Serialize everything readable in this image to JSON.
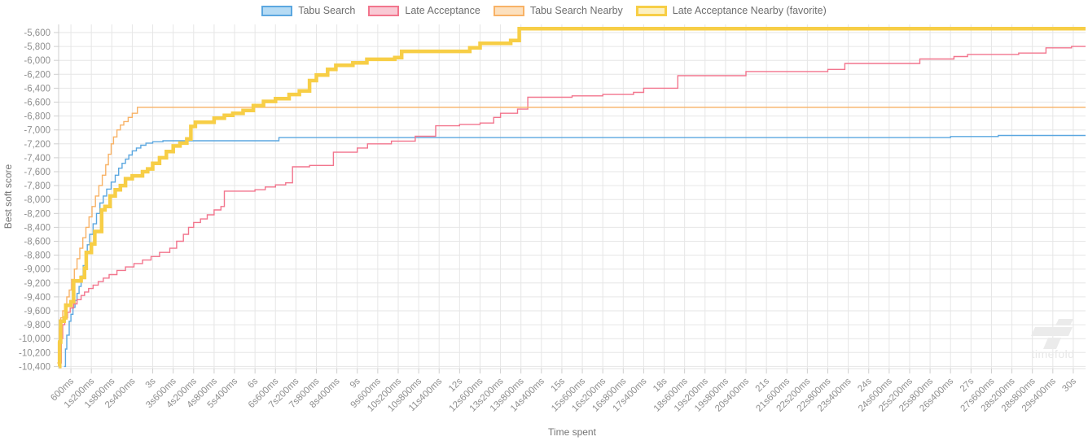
{
  "chart_data": {
    "type": "line",
    "subtype": "step-after",
    "title": "",
    "xlabel": "Time spent",
    "ylabel": "Best soft score",
    "grid": true,
    "legend_position": "top",
    "ylim": [
      -10400,
      -5600
    ],
    "x_range_seconds": [
      0.24,
      30.36
    ],
    "y_ticks": [
      {
        "v": -5600,
        "label": "-5,600"
      },
      {
        "v": -5800,
        "label": "-5,800"
      },
      {
        "v": -6000,
        "label": "-6,000"
      },
      {
        "v": -6200,
        "label": "-6,200"
      },
      {
        "v": -6400,
        "label": "-6,400"
      },
      {
        "v": -6600,
        "label": "-6,600"
      },
      {
        "v": -6800,
        "label": "-6,800"
      },
      {
        "v": -7000,
        "label": "-7,000"
      },
      {
        "v": -7200,
        "label": "-7,200"
      },
      {
        "v": -7400,
        "label": "-7,400"
      },
      {
        "v": -7600,
        "label": "-7,600"
      },
      {
        "v": -7800,
        "label": "-7,800"
      },
      {
        "v": -8000,
        "label": "-8,000"
      },
      {
        "v": -8200,
        "label": "-8,200"
      },
      {
        "v": -8400,
        "label": "-8,400"
      },
      {
        "v": -8600,
        "label": "-8,600"
      },
      {
        "v": -8800,
        "label": "-8,800"
      },
      {
        "v": -9000,
        "label": "-9,000"
      },
      {
        "v": -9200,
        "label": "-9,200"
      },
      {
        "v": -9400,
        "label": "-9,400"
      },
      {
        "v": -9600,
        "label": "-9,600"
      },
      {
        "v": -9800,
        "label": "-9,800"
      },
      {
        "v": -10000,
        "label": "-10,000"
      },
      {
        "v": -10200,
        "label": "-10,200"
      },
      {
        "v": -10400,
        "label": "-10,400"
      }
    ],
    "x_ticks": [
      {
        "t": 0.6,
        "label": "600ms"
      },
      {
        "t": 1.2,
        "label": "1s200ms"
      },
      {
        "t": 1.8,
        "label": "1s800ms"
      },
      {
        "t": 2.4,
        "label": "2s400ms"
      },
      {
        "t": 3,
        "label": "3s"
      },
      {
        "t": 3.6,
        "label": "3s600ms"
      },
      {
        "t": 4.2,
        "label": "4s200ms"
      },
      {
        "t": 4.8,
        "label": "4s800ms"
      },
      {
        "t": 5.4,
        "label": "5s400ms"
      },
      {
        "t": 6,
        "label": "6s"
      },
      {
        "t": 6.6,
        "label": "6s600ms"
      },
      {
        "t": 7.2,
        "label": "7s200ms"
      },
      {
        "t": 7.8,
        "label": "7s800ms"
      },
      {
        "t": 8.4,
        "label": "8s400ms"
      },
      {
        "t": 9,
        "label": "9s"
      },
      {
        "t": 9.6,
        "label": "9s600ms"
      },
      {
        "t": 10.2,
        "label": "10s200ms"
      },
      {
        "t": 10.8,
        "label": "10s800ms"
      },
      {
        "t": 11.4,
        "label": "11s400ms"
      },
      {
        "t": 12,
        "label": "12s"
      },
      {
        "t": 12.6,
        "label": "12s600ms"
      },
      {
        "t": 13.2,
        "label": "13s200ms"
      },
      {
        "t": 13.8,
        "label": "13s800ms"
      },
      {
        "t": 14.4,
        "label": "14s400ms"
      },
      {
        "t": 15,
        "label": "15s"
      },
      {
        "t": 15.6,
        "label": "15s600ms"
      },
      {
        "t": 16.2,
        "label": "16s200ms"
      },
      {
        "t": 16.8,
        "label": "16s800ms"
      },
      {
        "t": 17.4,
        "label": "17s400ms"
      },
      {
        "t": 18,
        "label": "18s"
      },
      {
        "t": 18.6,
        "label": "18s600ms"
      },
      {
        "t": 19.2,
        "label": "19s200ms"
      },
      {
        "t": 19.8,
        "label": "19s800ms"
      },
      {
        "t": 20.4,
        "label": "20s400ms"
      },
      {
        "t": 21,
        "label": "21s"
      },
      {
        "t": 21.6,
        "label": "21s600ms"
      },
      {
        "t": 22.2,
        "label": "22s200ms"
      },
      {
        "t": 22.8,
        "label": "22s800ms"
      },
      {
        "t": 23.4,
        "label": "23s400ms"
      },
      {
        "t": 24,
        "label": "24s"
      },
      {
        "t": 24.6,
        "label": "24s600ms"
      },
      {
        "t": 25.2,
        "label": "25s200ms"
      },
      {
        "t": 25.8,
        "label": "25s800ms"
      },
      {
        "t": 26.4,
        "label": "26s400ms"
      },
      {
        "t": 27,
        "label": "27s"
      },
      {
        "t": 27.6,
        "label": "27s600ms"
      },
      {
        "t": 28.2,
        "label": "28s200ms"
      },
      {
        "t": 28.8,
        "label": "28s800ms"
      },
      {
        "t": 29.4,
        "label": "29s400ms"
      },
      {
        "t": 30,
        "label": "30s"
      }
    ],
    "series": [
      {
        "name": "Tabu Search",
        "slug": "tabu-search",
        "color": "#5BA7E0",
        "fill": "#B6DBF4",
        "width": 1.4,
        "legend_border": 2,
        "points": [
          [
            0.4,
            -10400
          ],
          [
            0.44,
            -10150
          ],
          [
            0.48,
            -9950
          ],
          [
            0.55,
            -9750
          ],
          [
            0.6,
            -9650
          ],
          [
            0.66,
            -9550
          ],
          [
            0.72,
            -9450
          ],
          [
            0.78,
            -9350
          ],
          [
            0.84,
            -9250
          ],
          [
            0.9,
            -9100
          ],
          [
            0.96,
            -8950
          ],
          [
            1.02,
            -8800
          ],
          [
            1.08,
            -8650
          ],
          [
            1.15,
            -8500
          ],
          [
            1.25,
            -8350
          ],
          [
            1.35,
            -8200
          ],
          [
            1.45,
            -8050
          ],
          [
            1.55,
            -7950
          ],
          [
            1.65,
            -7850
          ],
          [
            1.78,
            -7750
          ],
          [
            1.9,
            -7650
          ],
          [
            2.0,
            -7550
          ],
          [
            2.1,
            -7480
          ],
          [
            2.2,
            -7420
          ],
          [
            2.3,
            -7360
          ],
          [
            2.4,
            -7300
          ],
          [
            2.52,
            -7260
          ],
          [
            2.65,
            -7220
          ],
          [
            2.8,
            -7190
          ],
          [
            3.0,
            -7170
          ],
          [
            3.3,
            -7155
          ],
          [
            6.7,
            -7110
          ],
          [
            26.4,
            -7095
          ],
          [
            27.8,
            -7080
          ]
        ]
      },
      {
        "name": "Late Acceptance",
        "slug": "late-acceptance",
        "color": "#F2758D",
        "fill": "#F9C9D4",
        "width": 1.4,
        "legend_border": 2,
        "points": [
          [
            0.27,
            -10350
          ],
          [
            0.32,
            -10000
          ],
          [
            0.36,
            -9800
          ],
          [
            0.42,
            -9700
          ],
          [
            0.5,
            -9620
          ],
          [
            0.58,
            -9560
          ],
          [
            0.68,
            -9500
          ],
          [
            0.78,
            -9440
          ],
          [
            0.9,
            -9380
          ],
          [
            1.0,
            -9330
          ],
          [
            1.12,
            -9280
          ],
          [
            1.25,
            -9230
          ],
          [
            1.4,
            -9180
          ],
          [
            1.55,
            -9130
          ],
          [
            1.72,
            -9080
          ],
          [
            1.95,
            -9020
          ],
          [
            2.2,
            -8970
          ],
          [
            2.45,
            -8920
          ],
          [
            2.7,
            -8870
          ],
          [
            2.95,
            -8820
          ],
          [
            3.2,
            -8760
          ],
          [
            3.5,
            -8700
          ],
          [
            3.7,
            -8600
          ],
          [
            3.9,
            -8500
          ],
          [
            4.05,
            -8400
          ],
          [
            4.2,
            -8330
          ],
          [
            4.4,
            -8280
          ],
          [
            4.6,
            -8220
          ],
          [
            4.8,
            -8150
          ],
          [
            5.0,
            -8100
          ],
          [
            5.1,
            -7880
          ],
          [
            6.0,
            -7860
          ],
          [
            6.3,
            -7820
          ],
          [
            6.6,
            -7790
          ],
          [
            6.9,
            -7760
          ],
          [
            7.1,
            -7530
          ],
          [
            7.6,
            -7510
          ],
          [
            8.3,
            -7320
          ],
          [
            9.0,
            -7260
          ],
          [
            9.3,
            -7200
          ],
          [
            10.0,
            -7160
          ],
          [
            10.7,
            -7090
          ],
          [
            11.3,
            -6940
          ],
          [
            12.0,
            -6920
          ],
          [
            12.6,
            -6900
          ],
          [
            13.0,
            -6820
          ],
          [
            13.2,
            -6760
          ],
          [
            13.7,
            -6700
          ],
          [
            14.0,
            -6530
          ],
          [
            15.3,
            -6510
          ],
          [
            16.2,
            -6490
          ],
          [
            17.1,
            -6460
          ],
          [
            17.4,
            -6400
          ],
          [
            18.4,
            -6220
          ],
          [
            20.4,
            -6160
          ],
          [
            22.8,
            -6130
          ],
          [
            23.3,
            -6045
          ],
          [
            25.5,
            -5980
          ],
          [
            26.5,
            -5945
          ],
          [
            26.9,
            -5915
          ],
          [
            28.4,
            -5895
          ],
          [
            29.2,
            -5820
          ],
          [
            29.95,
            -5800
          ]
        ]
      },
      {
        "name": "Tabu Search Nearby",
        "slug": "tabu-search-nearby",
        "color": "#F8B266",
        "fill": "#FCE0BE",
        "width": 1.4,
        "legend_border": 2,
        "points": [
          [
            0.2,
            -10350
          ],
          [
            0.23,
            -10050
          ],
          [
            0.26,
            -9850
          ],
          [
            0.3,
            -9700
          ],
          [
            0.36,
            -9600
          ],
          [
            0.42,
            -9500
          ],
          [
            0.48,
            -9400
          ],
          [
            0.55,
            -9300
          ],
          [
            0.62,
            -9150
          ],
          [
            0.7,
            -9000
          ],
          [
            0.78,
            -8850
          ],
          [
            0.86,
            -8700
          ],
          [
            0.95,
            -8550
          ],
          [
            1.04,
            -8400
          ],
          [
            1.13,
            -8250
          ],
          [
            1.22,
            -8100
          ],
          [
            1.32,
            -7950
          ],
          [
            1.42,
            -7800
          ],
          [
            1.52,
            -7650
          ],
          [
            1.62,
            -7500
          ],
          [
            1.7,
            -7350
          ],
          [
            1.78,
            -7200
          ],
          [
            1.85,
            -7100
          ],
          [
            1.95,
            -7000
          ],
          [
            2.05,
            -6930
          ],
          [
            2.15,
            -6880
          ],
          [
            2.28,
            -6820
          ],
          [
            2.4,
            -6760
          ],
          [
            2.55,
            -6675
          ]
        ]
      },
      {
        "name": "Late Acceptance Nearby (favorite)",
        "slug": "late-acceptance-nearby-favorite",
        "color": "#F7CE46",
        "fill": "#FCF0C0",
        "width": 4.5,
        "legend_border": 3,
        "points": [
          [
            0.25,
            -10400
          ],
          [
            0.27,
            -10050
          ],
          [
            0.3,
            -9750
          ],
          [
            0.4,
            -9700
          ],
          [
            0.45,
            -9520
          ],
          [
            0.6,
            -9470
          ],
          [
            0.68,
            -9170
          ],
          [
            0.9,
            -9120
          ],
          [
            1.0,
            -8990
          ],
          [
            1.05,
            -8760
          ],
          [
            1.2,
            -8640
          ],
          [
            1.3,
            -8460
          ],
          [
            1.5,
            -8150
          ],
          [
            1.6,
            -8100
          ],
          [
            1.75,
            -7950
          ],
          [
            1.9,
            -7860
          ],
          [
            2.05,
            -7800
          ],
          [
            2.2,
            -7700
          ],
          [
            2.4,
            -7660
          ],
          [
            2.7,
            -7600
          ],
          [
            2.85,
            -7560
          ],
          [
            3.0,
            -7480
          ],
          [
            3.2,
            -7400
          ],
          [
            3.4,
            -7310
          ],
          [
            3.6,
            -7230
          ],
          [
            3.8,
            -7190
          ],
          [
            4.0,
            -7130
          ],
          [
            4.12,
            -6950
          ],
          [
            4.25,
            -6890
          ],
          [
            4.8,
            -6830
          ],
          [
            5.1,
            -6790
          ],
          [
            5.35,
            -6760
          ],
          [
            5.65,
            -6720
          ],
          [
            5.95,
            -6650
          ],
          [
            6.25,
            -6590
          ],
          [
            6.6,
            -6550
          ],
          [
            7.0,
            -6490
          ],
          [
            7.3,
            -6440
          ],
          [
            7.6,
            -6290
          ],
          [
            7.8,
            -6210
          ],
          [
            8.13,
            -6130
          ],
          [
            8.37,
            -6070
          ],
          [
            8.87,
            -6035
          ],
          [
            9.28,
            -5985
          ],
          [
            10.1,
            -5960
          ],
          [
            10.3,
            -5870
          ],
          [
            12.3,
            -5820
          ],
          [
            12.6,
            -5755
          ],
          [
            13.5,
            -5715
          ],
          [
            13.75,
            -5545
          ]
        ]
      }
    ],
    "colors": {
      "grid": "#E6E6E6",
      "axis_tick": "#CFCFCF",
      "tick_label": "#8F8F8F",
      "axis_title": "#757575"
    }
  },
  "watermark": {
    "text": "timefold"
  }
}
